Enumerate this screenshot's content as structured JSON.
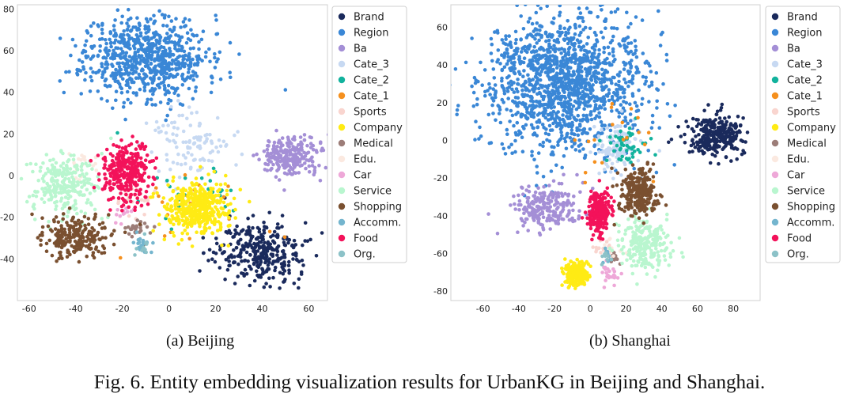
{
  "figure": {
    "caption": "Fig. 6.  Entity embedding visualization results for UrbanKG in Beijing and Shanghai.",
    "subcaptions": [
      "(a)  Beijing",
      "(b)  Shanghai"
    ]
  },
  "legend_entries": [
    {
      "name": "Brand",
      "color": "#1a2a5c"
    },
    {
      "name": "Region",
      "color": "#3a87d6"
    },
    {
      "name": "Ba",
      "color": "#a48fd6"
    },
    {
      "name": "Cate_3",
      "color": "#c7d9f2"
    },
    {
      "name": "Cate_2",
      "color": "#12b29d"
    },
    {
      "name": "Cate_1",
      "color": "#f5901e"
    },
    {
      "name": "Sports",
      "color": "#f9d5cf"
    },
    {
      "name": "Company",
      "color": "#ffeb14"
    },
    {
      "name": "Medical",
      "color": "#9c7d78"
    },
    {
      "name": "Edu.",
      "color": "#fbe9e0"
    },
    {
      "name": "Car",
      "color": "#eea8d8"
    },
    {
      "name": "Service",
      "color": "#b9f6cf"
    },
    {
      "name": "Shopping",
      "color": "#7a5030"
    },
    {
      "name": "Accomm.",
      "color": "#74b5ce"
    },
    {
      "name": "Food",
      "color": "#f3125a"
    },
    {
      "name": "Org.",
      "color": "#8cc2c8"
    }
  ],
  "chart_data": [
    {
      "type": "scatter",
      "subtitle": "(a)  Beijing",
      "xlim": [
        -65,
        68
      ],
      "ylim": [
        -60,
        82
      ],
      "xticks": [
        -60,
        -40,
        -20,
        0,
        20,
        40,
        60
      ],
      "yticks": [
        -40,
        -20,
        0,
        20,
        40,
        60,
        80
      ],
      "grid": false,
      "legend_position": "right",
      "clusters": [
        {
          "name": "Region",
          "cx": -10,
          "cy": 57,
          "sx": 13,
          "sy": 10,
          "n": 750
        },
        {
          "name": "Brand",
          "cx": 40,
          "cy": -37,
          "sx": 10,
          "sy": 7,
          "n": 320
        },
        {
          "name": "Ba",
          "cx": 52,
          "cy": 9,
          "sx": 6,
          "sy": 5,
          "n": 250
        },
        {
          "name": "Cate_3",
          "cx": 10,
          "cy": 14,
          "sx": 8,
          "sy": 8,
          "n": 110
        },
        {
          "name": "Cate_2",
          "cx": 15,
          "cy": -10,
          "sx": 12,
          "sy": 9,
          "n": 30
        },
        {
          "name": "Cate_1",
          "cx": 8,
          "cy": -10,
          "sx": 15,
          "sy": 15,
          "n": 20
        },
        {
          "name": "Sports",
          "cx": -15,
          "cy": -12,
          "sx": 4,
          "sy": 4,
          "n": 25
        },
        {
          "name": "Company",
          "cx": 12,
          "cy": -16,
          "sx": 7,
          "sy": 6,
          "n": 460
        },
        {
          "name": "Medical",
          "cx": -14,
          "cy": -25,
          "sx": 3,
          "sy": 2,
          "n": 25
        },
        {
          "name": "Edu.",
          "cx": -36,
          "cy": 6,
          "sx": 3,
          "sy": 3,
          "n": 20
        },
        {
          "name": "Car",
          "cx": -20,
          "cy": -18,
          "sx": 2,
          "sy": 2,
          "n": 12
        },
        {
          "name": "Service",
          "cx": -45,
          "cy": -5,
          "sx": 7,
          "sy": 8,
          "n": 260
        },
        {
          "name": "Shopping",
          "cx": -40,
          "cy": -30,
          "sx": 8,
          "sy": 5,
          "n": 230
        },
        {
          "name": "Accomm.",
          "cx": -11,
          "cy": -33,
          "sx": 2,
          "sy": 2,
          "n": 20
        },
        {
          "name": "Food",
          "cx": -18,
          "cy": 2,
          "sx": 5,
          "sy": 7,
          "n": 320
        },
        {
          "name": "Org.",
          "cx": -10,
          "cy": -35,
          "sx": 2,
          "sy": 2,
          "n": 10
        }
      ]
    },
    {
      "type": "scatter",
      "subtitle": "(b)  Shanghai",
      "xlim": [
        -78,
        95
      ],
      "ylim": [
        -85,
        72
      ],
      "xticks": [
        -60,
        -40,
        -20,
        0,
        20,
        40,
        60,
        80
      ],
      "yticks": [
        -80,
        -60,
        -40,
        -20,
        0,
        20,
        40,
        60
      ],
      "grid": false,
      "legend_position": "right",
      "clusters": [
        {
          "name": "Region",
          "cx": -15,
          "cy": 30,
          "sx": 22,
          "sy": 18,
          "n": 1400
        },
        {
          "name": "Brand",
          "cx": 70,
          "cy": 3,
          "sx": 8,
          "sy": 6,
          "n": 300
        },
        {
          "name": "Ba",
          "cx": -25,
          "cy": -35,
          "sx": 10,
          "sy": 6,
          "n": 220
        },
        {
          "name": "Cate_3",
          "cx": 15,
          "cy": -5,
          "sx": 7,
          "sy": 7,
          "n": 100
        },
        {
          "name": "Cate_2",
          "cx": 20,
          "cy": -3,
          "sx": 6,
          "sy": 5,
          "n": 50
        },
        {
          "name": "Cate_1",
          "cx": 15,
          "cy": 0,
          "sx": 12,
          "sy": 14,
          "n": 20
        },
        {
          "name": "Sports",
          "cx": 8,
          "cy": -57,
          "sx": 3,
          "sy": 2,
          "n": 15
        },
        {
          "name": "Company",
          "cx": -8,
          "cy": -71,
          "sx": 3,
          "sy": 3,
          "n": 260
        },
        {
          "name": "Medical",
          "cx": 13,
          "cy": -63,
          "sx": 2,
          "sy": 2,
          "n": 12
        },
        {
          "name": "Edu.",
          "cx": 12,
          "cy": -58,
          "sx": 3,
          "sy": 3,
          "n": 12
        },
        {
          "name": "Car",
          "cx": 11,
          "cy": -71,
          "sx": 3,
          "sy": 3,
          "n": 25
        },
        {
          "name": "Service",
          "cx": 30,
          "cy": -55,
          "sx": 7,
          "sy": 7,
          "n": 250
        },
        {
          "name": "Shopping",
          "cx": 27,
          "cy": -27,
          "sx": 5,
          "sy": 6,
          "n": 250
        },
        {
          "name": "Accomm.",
          "cx": 10,
          "cy": -61,
          "sx": 2,
          "sy": 2,
          "n": 10
        },
        {
          "name": "Food",
          "cx": 5,
          "cy": -38,
          "sx": 3,
          "sy": 5,
          "n": 260
        },
        {
          "name": "Org.",
          "cx": 9,
          "cy": -62,
          "sx": 2,
          "sy": 2,
          "n": 8
        }
      ]
    }
  ]
}
